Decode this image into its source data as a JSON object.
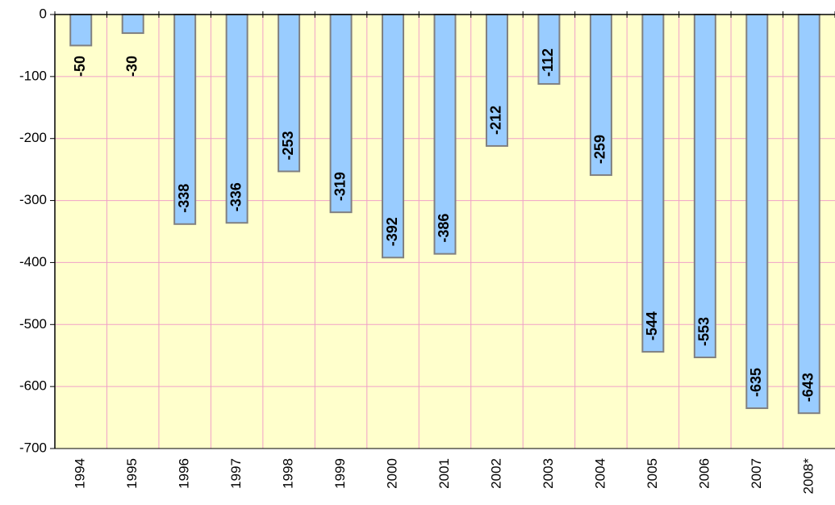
{
  "chart_data": {
    "type": "bar",
    "categories": [
      "1994",
      "1995",
      "1996",
      "1997",
      "1998",
      "1999",
      "2000",
      "2001",
      "2002",
      "2003",
      "2004",
      "2005",
      "2006",
      "2007",
      "2008*"
    ],
    "values": [
      -50,
      -30,
      -338,
      -336,
      -253,
      -319,
      -392,
      -386,
      -212,
      -112,
      -259,
      -544,
      -553,
      -635,
      -643
    ],
    "color": "#99ccff",
    "ylim": [
      -700,
      0
    ],
    "yticks": [
      -700,
      -600,
      -500,
      -400,
      -300,
      -200,
      -100,
      0
    ],
    "grid": true
  }
}
